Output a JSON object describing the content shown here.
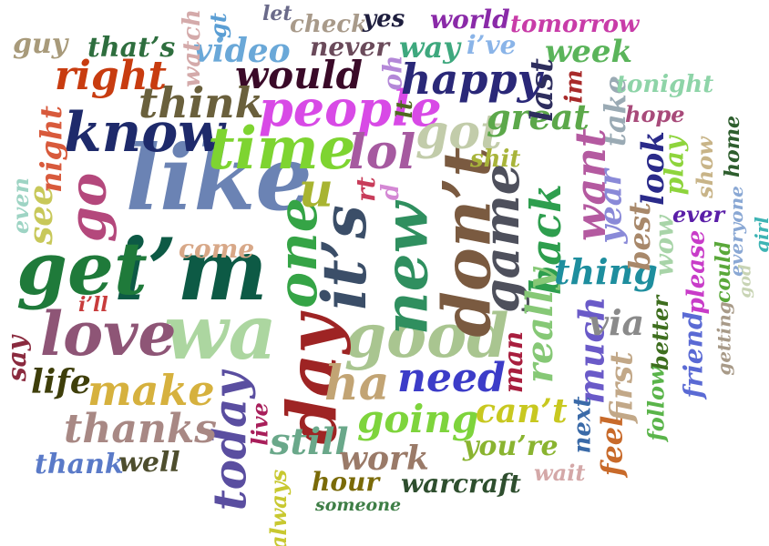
{
  "words": [
    {
      "id": "like",
      "text": "like",
      "color": "#6b83b4"
    },
    {
      "id": "im",
      "text": "i’m",
      "color": "#0d5a45"
    },
    {
      "id": "get",
      "text": "get",
      "color": "#1f7a3a"
    },
    {
      "id": "wa",
      "text": "wa",
      "color": "#acd6a0"
    },
    {
      "id": "know",
      "text": "know",
      "color": "#1e2a6b"
    },
    {
      "id": "time",
      "text": "time",
      "color": "#7ed431"
    },
    {
      "id": "people",
      "text": "people",
      "color": "#d84ae6"
    },
    {
      "id": "love",
      "text": "love",
      "color": "#8e5576"
    },
    {
      "id": "good",
      "text": "good",
      "color": "#a9c590"
    },
    {
      "id": "day",
      "text": "day",
      "color": "#9e2424"
    },
    {
      "id": "dont",
      "text": "don’t",
      "color": "#7a5a40"
    },
    {
      "id": "its",
      "text": "it’s",
      "color": "#3b4e68"
    },
    {
      "id": "new",
      "text": "new",
      "color": "#2f8f5f"
    },
    {
      "id": "one",
      "text": "one",
      "color": "#35a446"
    },
    {
      "id": "game",
      "text": "game",
      "color": "#4e505c"
    },
    {
      "id": "today",
      "text": "today",
      "color": "#5a4ea0"
    },
    {
      "id": "go",
      "text": "go",
      "color": "#b4487c"
    },
    {
      "id": "lol",
      "text": "lol",
      "color": "#a65aa0"
    },
    {
      "id": "u",
      "text": "u",
      "color": "#a8b431"
    },
    {
      "id": "ha",
      "text": "ha",
      "color": "#c2a474"
    },
    {
      "id": "make",
      "text": "make",
      "color": "#d6b13e"
    },
    {
      "id": "thanks",
      "text": "thanks",
      "color": "#a88884"
    },
    {
      "id": "need",
      "text": "need",
      "color": "#3c3cc8"
    },
    {
      "id": "going",
      "text": "going",
      "color": "#7ed43c"
    },
    {
      "id": "happy",
      "text": "happy",
      "color": "#2a2878"
    },
    {
      "id": "would",
      "text": "would",
      "color": "#3a0a28"
    },
    {
      "id": "think",
      "text": "think",
      "color": "#6a603c"
    },
    {
      "id": "right",
      "text": "right",
      "color": "#c83c10"
    },
    {
      "id": "video",
      "text": "video",
      "color": "#6aa8d8"
    },
    {
      "id": "got",
      "text": "got",
      "color": "#c2ccaa"
    },
    {
      "id": "great",
      "text": "great",
      "color": "#5ca84a"
    },
    {
      "id": "want",
      "text": "want",
      "color": "#b45aa0"
    },
    {
      "id": "back",
      "text": "back",
      "color": "#2e9e4e"
    },
    {
      "id": "really",
      "text": "really",
      "color": "#86c876"
    },
    {
      "id": "thing",
      "text": "thing",
      "color": "#1e8e9e"
    },
    {
      "id": "much",
      "text": "much",
      "color": "#6a5ac8"
    },
    {
      "id": "via",
      "text": "via",
      "color": "#8a8a8a"
    },
    {
      "id": "cant",
      "text": "can’t",
      "color": "#c8c820"
    },
    {
      "id": "youre",
      "text": "you’re",
      "color": "#8ab430"
    },
    {
      "id": "still",
      "text": "still",
      "color": "#6aa88a"
    },
    {
      "id": "work",
      "text": "work",
      "color": "#9a7a68"
    },
    {
      "id": "hour",
      "text": "hour",
      "color": "#7a6a08"
    },
    {
      "id": "warcraft",
      "text": "warcraft",
      "color": "#2e4e2e"
    },
    {
      "id": "someone",
      "text": "someone",
      "color": "#3e7e46"
    },
    {
      "id": "thank",
      "text": "thank",
      "color": "#5a7ac8"
    },
    {
      "id": "well",
      "text": "well",
      "color": "#4e4e2e"
    },
    {
      "id": "life",
      "text": "life",
      "color": "#3e3e0a"
    },
    {
      "id": "say",
      "text": "say",
      "color": "#8a2a3e"
    },
    {
      "id": "ill",
      "text": "i’ll",
      "color": "#c83c3c"
    },
    {
      "id": "come",
      "text": "come",
      "color": "#d8a888"
    },
    {
      "id": "see",
      "text": "see",
      "color": "#c8c85a"
    },
    {
      "id": "night",
      "text": "night",
      "color": "#d85a3c"
    },
    {
      "id": "even",
      "text": "even",
      "color": "#9ed4c4"
    },
    {
      "id": "guy",
      "text": "guy",
      "color": "#a89a7a"
    },
    {
      "id": "thats",
      "text": "that’s",
      "color": "#2e6e3e"
    },
    {
      "id": "watch",
      "text": "watch",
      "color": "#d4aaaa"
    },
    {
      "id": "gt",
      "text": "gt",
      "color": "#5a9ed4"
    },
    {
      "id": "let",
      "text": "let",
      "color": "#6a6a8a"
    },
    {
      "id": "check",
      "text": "check",
      "color": "#a89a8a"
    },
    {
      "id": "yes",
      "text": "yes",
      "color": "#1e1e3e"
    },
    {
      "id": "never",
      "text": "never",
      "color": "#6a4a5a"
    },
    {
      "id": "world",
      "text": "world",
      "color": "#8a2aa8"
    },
    {
      "id": "tomorrow",
      "text": "tomorrow",
      "color": "#c83ca8"
    },
    {
      "id": "way",
      "text": "way",
      "color": "#3ea87e"
    },
    {
      "id": "ive",
      "text": "i’ve",
      "color": "#8ab4e8"
    },
    {
      "id": "week",
      "text": "week",
      "color": "#5ab45a"
    },
    {
      "id": "oh",
      "text": "oh",
      "color": "#b488d8"
    },
    {
      "id": "last",
      "text": "last",
      "color": "#2e2e5e"
    },
    {
      "id": "im2",
      "text": "im",
      "color": "#a82a2a"
    },
    {
      "id": "take",
      "text": "take",
      "color": "#9aaab4"
    },
    {
      "id": "tonight",
      "text": "tonight",
      "color": "#8ed4a8"
    },
    {
      "id": "hope",
      "text": "hope",
      "color": "#a84a7a"
    },
    {
      "id": "lt",
      "text": "lt",
      "color": "#4e6a1e"
    },
    {
      "id": "shit",
      "text": "shit",
      "color": "#a8b43a"
    },
    {
      "id": "rt",
      "text": "rt",
      "color": "#c83c5a"
    },
    {
      "id": "d",
      "text": "d",
      "color": "#d488d4"
    },
    {
      "id": "year",
      "text": "year",
      "color": "#8a8ad8"
    },
    {
      "id": "best",
      "text": "best",
      "color": "#a8886a"
    },
    {
      "id": "look",
      "text": "look",
      "color": "#2a2a8a"
    },
    {
      "id": "wow",
      "text": "wow",
      "color": "#a8d4a8"
    },
    {
      "id": "play",
      "text": "play",
      "color": "#8ed43c"
    },
    {
      "id": "show",
      "text": "show",
      "color": "#c8b488"
    },
    {
      "id": "home",
      "text": "home",
      "color": "#2e5e2e"
    },
    {
      "id": "ever",
      "text": "ever",
      "color": "#5a1ea8"
    },
    {
      "id": "everyone",
      "text": "everyone",
      "color": "#8aa8d4"
    },
    {
      "id": "girl",
      "text": "girl",
      "color": "#3eb4b4"
    },
    {
      "id": "please",
      "text": "please",
      "color": "#c83cc8"
    },
    {
      "id": "could",
      "text": "could",
      "color": "#5aa83a"
    },
    {
      "id": "god",
      "text": "god",
      "color": "#c8d4b4"
    },
    {
      "id": "getting",
      "text": "getting",
      "color": "#a89a88"
    },
    {
      "id": "friend",
      "text": "friend",
      "color": "#5a6ad4"
    },
    {
      "id": "better",
      "text": "better",
      "color": "#3e6e1e"
    },
    {
      "id": "follow",
      "text": "follow",
      "color": "#5ab44a"
    },
    {
      "id": "first",
      "text": "first",
      "color": "#c2a888"
    },
    {
      "id": "feel",
      "text": "feel",
      "color": "#c86a2a"
    },
    {
      "id": "next",
      "text": "next",
      "color": "#3a6aa8"
    },
    {
      "id": "man",
      "text": "man",
      "color": "#a81e3e"
    },
    {
      "id": "wait",
      "text": "wait",
      "color": "#d4a8a8"
    },
    {
      "id": "live",
      "text": "live",
      "color": "#a81e5a"
    },
    {
      "id": "always",
      "text": "always",
      "color": "#c8c830"
    }
  ]
}
